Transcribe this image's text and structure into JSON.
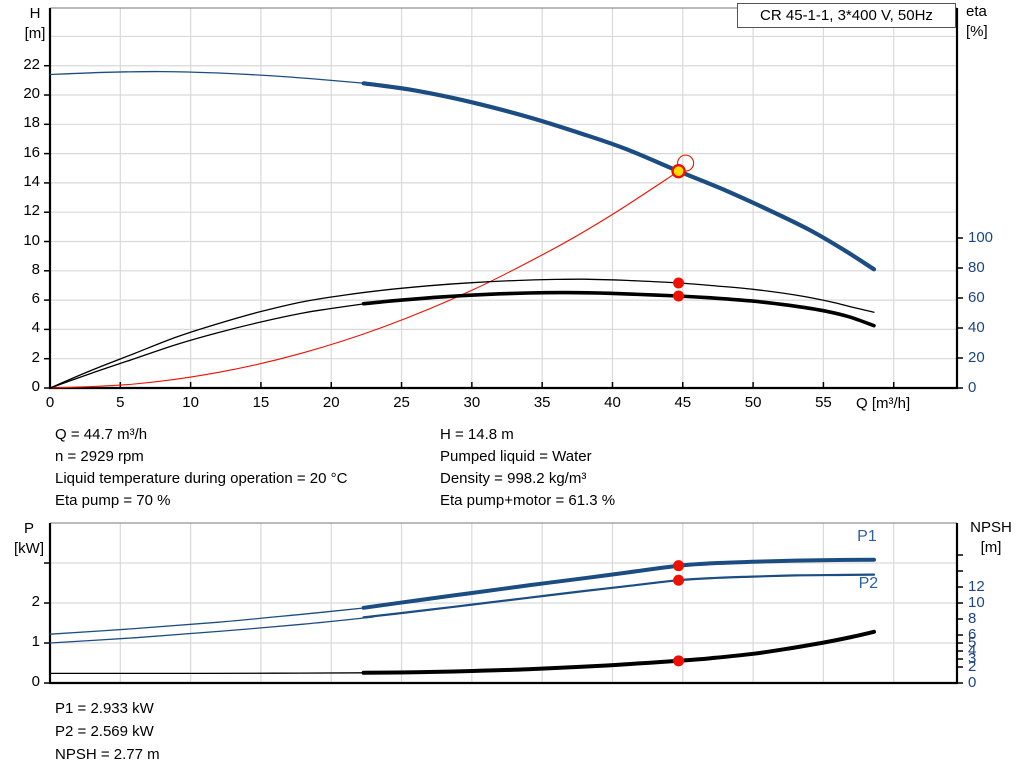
{
  "title_box": {
    "label": "CR 45-1-1, 3*400 V, 50Hz"
  },
  "colors": {
    "curve_blue": "#1b4d82",
    "label_blue": "#2d5f9f",
    "right_tick_blue": "#1c4587",
    "red": "#ee1100",
    "yellow": "#ffdd00",
    "black": "#000000",
    "grid": "#d9d9d9",
    "axis": "#000000",
    "top_border": "#777777"
  },
  "info_top_left": {
    "lines": [
      "Q = 44.7 m³/h",
      "n = 2929 rpm",
      "Liquid temperature during operation = 20 °C",
      "Eta pump = 70 %"
    ]
  },
  "info_top_right": {
    "lines": [
      "H = 14.8 m",
      "Pumped liquid = Water",
      "Density = 998.2 kg/m³",
      "Eta pump+motor = 61.3 %"
    ]
  },
  "info_bottom": {
    "lines": [
      "P1 = 2.933 kW",
      "P2 = 2.569 kW",
      "NPSH = 2.77 m"
    ]
  },
  "chart_data": [
    {
      "type": "line",
      "title": "CR 45-1-1, 3*400 V, 50Hz",
      "x_axis": {
        "label": "Q [m³/h]",
        "range": [
          0,
          64.5
        ],
        "ticks": [
          0,
          5,
          10,
          15,
          20,
          25,
          30,
          35,
          40,
          45,
          50,
          55,
          60
        ],
        "tick_labels": [
          "0",
          "5",
          "10",
          "15",
          "20",
          "25",
          "30",
          "35",
          "40",
          "45",
          "50",
          "55",
          ""
        ],
        "grid": [
          5,
          10,
          15,
          20,
          25,
          30,
          35,
          40,
          45,
          50,
          55,
          60
        ],
        "show_ticks": true
      },
      "y_left": {
        "label_lines": [
          "H",
          "[m]"
        ],
        "range": [
          0,
          25.94
        ],
        "ticks": [
          0,
          2,
          4,
          6,
          8,
          10,
          12,
          14,
          16,
          18,
          20,
          22
        ],
        "tick_labels": [
          "0",
          "2",
          "4",
          "6",
          "8",
          "10",
          "12",
          "14",
          "16",
          "18",
          "20",
          "22"
        ],
        "grid": [
          2,
          4,
          6,
          8,
          10,
          12,
          14,
          16,
          18,
          20,
          22,
          24
        ]
      },
      "y_right": {
        "label_lines": [
          "eta",
          "[%]"
        ],
        "range": [
          0,
          253.3
        ],
        "ticks": [
          0,
          20,
          40,
          60,
          80,
          100
        ],
        "tick_labels": [
          "0",
          "20",
          "40",
          "60",
          "80",
          "100"
        ]
      },
      "series": [
        {
          "name": "system-curve",
          "axis": "left",
          "color": "red",
          "width": 1.1,
          "points": [
            [
              0,
              0
            ],
            [
              6,
              0.27
            ],
            [
              12,
              1.07
            ],
            [
              18,
              2.4
            ],
            [
              24,
              4.27
            ],
            [
              30,
              6.67
            ],
            [
              36,
              9.6
            ],
            [
              40,
              11.85
            ],
            [
              44.7,
              14.8
            ]
          ]
        },
        {
          "name": "eta-pump-curve-thin",
          "axis": "right",
          "color": "black",
          "width": 1.3,
          "points": [
            [
              0,
              0
            ],
            [
              3,
              12
            ],
            [
              6,
              23
            ],
            [
              9,
              34
            ],
            [
              12,
              43
            ],
            [
              15,
              51
            ],
            [
              18,
              57.5
            ],
            [
              21,
              62
            ],
            [
              24,
              65.5
            ],
            [
              27,
              68.2
            ],
            [
              30,
              70.2
            ],
            [
              33,
              71.6
            ],
            [
              36,
              72.4
            ],
            [
              38,
              72.5
            ],
            [
              41,
              71.7
            ],
            [
              44.7,
              70
            ],
            [
              47,
              68.3
            ],
            [
              50,
              65.8
            ],
            [
              53,
              62
            ],
            [
              55.5,
              57.5
            ],
            [
              57,
              54
            ],
            [
              58.6,
              50.5
            ]
          ]
        },
        {
          "name": "eta-pump-motor-curve-thin",
          "axis": "right",
          "color": "black",
          "width": 1.3,
          "points": [
            [
              0,
              0
            ],
            [
              3,
              10
            ],
            [
              6,
              19.5
            ],
            [
              9,
              29
            ],
            [
              12,
              37
            ],
            [
              15,
              44
            ],
            [
              18,
              50
            ],
            [
              20,
              53
            ],
            [
              22.5,
              56.3
            ]
          ]
        },
        {
          "name": "eta-pump-motor-curve-thick",
          "axis": "right",
          "color": "black",
          "width": 3.6,
          "points": [
            [
              22.3,
              56.2
            ],
            [
              25,
              58.6
            ],
            [
              28,
              60.8
            ],
            [
              31,
              62.4
            ],
            [
              34,
              63.3
            ],
            [
              36.5,
              63.6
            ],
            [
              39,
              63.3
            ],
            [
              41.5,
              62.5
            ],
            [
              44.7,
              61.3
            ],
            [
              47,
              60.1
            ],
            [
              50,
              57.9
            ],
            [
              52.5,
              55.2
            ],
            [
              55,
              51.5
            ],
            [
              56.8,
              47.5
            ],
            [
              58.6,
              41.5
            ]
          ]
        },
        {
          "name": "head-curve-thin",
          "axis": "left",
          "color": "curve_blue",
          "width": 1.3,
          "points": [
            [
              0,
              21.4
            ],
            [
              4,
              21.55
            ],
            [
              8,
              21.6
            ],
            [
              12,
              21.5
            ],
            [
              16,
              21.3
            ],
            [
              20,
              21.0
            ],
            [
              23,
              20.75
            ]
          ]
        },
        {
          "name": "head-curve-thick",
          "axis": "left",
          "color": "curve_blue",
          "width": 4.2,
          "points": [
            [
              22.3,
              20.8
            ],
            [
              26,
              20.3
            ],
            [
              30,
              19.5
            ],
            [
              34,
              18.5
            ],
            [
              38,
              17.3
            ],
            [
              41,
              16.3
            ],
            [
              44.7,
              14.8
            ],
            [
              48,
              13.5
            ],
            [
              51,
              12.2
            ],
            [
              54,
              10.8
            ],
            [
              56.5,
              9.4
            ],
            [
              58.6,
              8.1
            ]
          ]
        }
      ],
      "markers": [
        {
          "type": "outline",
          "axis": "left",
          "q": 45.2,
          "v": 15.35
        },
        {
          "type": "duty",
          "axis": "left",
          "q": 44.7,
          "v": 14.8
        },
        {
          "type": "dot",
          "axis": "right",
          "q": 44.7,
          "v": 70
        },
        {
          "type": "dot",
          "axis": "right",
          "q": 44.7,
          "v": 61.3
        }
      ],
      "labels": []
    },
    {
      "type": "line",
      "x_axis": {
        "label": "",
        "range": [
          0,
          64.5
        ],
        "ticks": [],
        "tick_labels": [],
        "grid": [
          5,
          10,
          15,
          20,
          25,
          30,
          35,
          40,
          45,
          50,
          55,
          60
        ],
        "show_ticks": false
      },
      "y_left": {
        "label_lines": [
          "P",
          "[kW]"
        ],
        "range": [
          0,
          4
        ],
        "ticks": [
          0,
          1,
          2,
          3
        ],
        "tick_labels": [
          "0",
          "1",
          "2",
          ""
        ],
        "grid": [
          1,
          2,
          3
        ]
      },
      "y_right": {
        "label_lines": [
          "NPSH",
          "[m]"
        ],
        "range": [
          0,
          20
        ],
        "ticks": [
          0,
          2,
          3,
          4,
          5,
          6,
          8,
          10,
          12,
          14,
          16
        ],
        "tick_labels": [
          "0",
          "2",
          "3",
          "4",
          "5",
          "6",
          "8",
          "10",
          "12",
          "",
          ""
        ]
      },
      "series": [
        {
          "name": "p1-curve-thin",
          "axis": "left",
          "color": "curve_blue",
          "width": 1.3,
          "points": [
            [
              0,
              1.22
            ],
            [
              6,
              1.36
            ],
            [
              12,
              1.52
            ],
            [
              18,
              1.72
            ],
            [
              23,
              1.9
            ]
          ]
        },
        {
          "name": "p1-curve-thick",
          "axis": "left",
          "color": "curve_blue",
          "width": 4.0,
          "points": [
            [
              22.3,
              1.88
            ],
            [
              26,
              2.06
            ],
            [
              30,
              2.25
            ],
            [
              34,
              2.44
            ],
            [
              38,
              2.62
            ],
            [
              41,
              2.76
            ],
            [
              44.7,
              2.933
            ],
            [
              47.5,
              3.0
            ],
            [
              50,
              3.03
            ],
            [
              53,
              3.06
            ],
            [
              56,
              3.075
            ],
            [
              58.6,
              3.08
            ]
          ]
        },
        {
          "name": "p2-curve-thin",
          "axis": "left",
          "color": "curve_blue",
          "width": 1.3,
          "points": [
            [
              0,
              1.0
            ],
            [
              6,
              1.13
            ],
            [
              12,
              1.29
            ],
            [
              18,
              1.47
            ],
            [
              23,
              1.65
            ]
          ]
        },
        {
          "name": "p2-curve-thick",
          "axis": "left",
          "color": "curve_blue",
          "width": 2.2,
          "points": [
            [
              22.3,
              1.64
            ],
            [
              26,
              1.79
            ],
            [
              30,
              1.96
            ],
            [
              34,
              2.13
            ],
            [
              38,
              2.3
            ],
            [
              41,
              2.42
            ],
            [
              44.7,
              2.569
            ],
            [
              47.5,
              2.63
            ],
            [
              50,
              2.66
            ],
            [
              53,
              2.69
            ],
            [
              56,
              2.7
            ],
            [
              58.6,
              2.71
            ]
          ]
        },
        {
          "name": "npsh-curve-thin",
          "axis": "right",
          "color": "black",
          "width": 1.3,
          "points": [
            [
              0,
              1.2
            ],
            [
              8,
              1.2
            ],
            [
              16,
              1.23
            ],
            [
              22.5,
              1.27
            ]
          ]
        },
        {
          "name": "npsh-curve-thick",
          "axis": "right",
          "color": "black",
          "width": 4.0,
          "points": [
            [
              22.3,
              1.27
            ],
            [
              26,
              1.35
            ],
            [
              30,
              1.5
            ],
            [
              34,
              1.72
            ],
            [
              38,
              2.05
            ],
            [
              41,
              2.35
            ],
            [
              44.7,
              2.77
            ],
            [
              47,
              3.1
            ],
            [
              50,
              3.65
            ],
            [
              52.5,
              4.3
            ],
            [
              55,
              5.05
            ],
            [
              57,
              5.75
            ],
            [
              58.6,
              6.4
            ]
          ]
        }
      ],
      "markers": [
        {
          "type": "dot",
          "axis": "left",
          "q": 44.7,
          "v": 2.933
        },
        {
          "type": "dot",
          "axis": "left",
          "q": 44.7,
          "v": 2.569
        },
        {
          "type": "dot",
          "axis": "right",
          "q": 44.7,
          "v": 2.77
        }
      ],
      "labels": [
        {
          "text": "P1",
          "q": 57.4,
          "v": 3.62
        },
        {
          "text": "P2",
          "q": 57.5,
          "v": 2.44
        }
      ]
    }
  ]
}
